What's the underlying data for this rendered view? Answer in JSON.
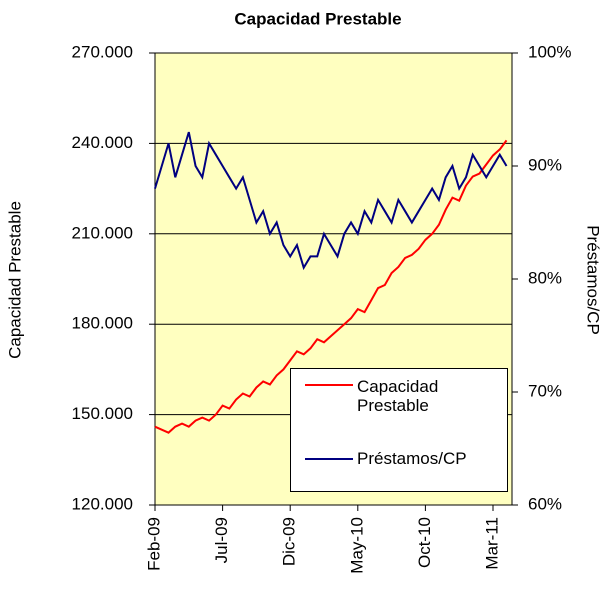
{
  "chart_data": {
    "type": "line",
    "title": "Capacidad Prestable",
    "y_label": "Capacidad Prestable",
    "y2_label": "Préstamos/CP",
    "categories": [
      "Feb-09",
      null,
      null,
      null,
      null,
      null,
      null,
      null,
      null,
      null,
      "Jul-09",
      null,
      null,
      null,
      null,
      null,
      null,
      null,
      null,
      null,
      "Dic-09",
      null,
      null,
      null,
      null,
      null,
      null,
      null,
      null,
      null,
      "May-10",
      null,
      null,
      null,
      null,
      null,
      null,
      null,
      null,
      null,
      "Oct-10",
      null,
      null,
      null,
      null,
      null,
      null,
      null,
      null,
      null,
      "Mar-11",
      null,
      null
    ],
    "series": [
      {
        "name": "Capacidad Prestable",
        "color": "#ff0000",
        "values": [
          146000,
          145000,
          144000,
          146000,
          147000,
          146000,
          148000,
          149000,
          148000,
          150000,
          153000,
          152000,
          155000,
          157000,
          156000,
          159000,
          161000,
          160000,
          163000,
          165000,
          168000,
          171000,
          170000,
          172000,
          175000,
          174000,
          176000,
          178000,
          180000,
          182000,
          185000,
          184000,
          188000,
          192000,
          193000,
          197000,
          199000,
          202000,
          203000,
          205000,
          208000,
          210000,
          213000,
          218000,
          222000,
          221000,
          226000,
          229000,
          230000,
          233000,
          236000,
          238000,
          241000
        ]
      },
      {
        "name": "Préstamos/CP",
        "color": "#000080",
        "axis": "y2",
        "values": [
          88,
          90,
          92,
          89,
          91,
          93,
          90,
          89,
          92,
          91,
          90,
          89,
          88,
          89,
          87,
          85,
          86,
          84,
          85,
          83,
          82,
          83,
          81,
          82,
          82,
          84,
          83,
          82,
          84,
          85,
          84,
          86,
          85,
          87,
          86,
          85,
          87,
          86,
          85,
          86,
          87,
          88,
          87,
          89,
          90,
          88,
          89,
          91,
          90,
          89,
          90,
          91,
          90
        ]
      }
    ],
    "ylim": [
      120000,
      270000
    ],
    "yticks": [
      {
        "value": 120000,
        "label": "120.000"
      },
      {
        "value": 150000,
        "label": "150.000"
      },
      {
        "value": 180000,
        "label": "180.000"
      },
      {
        "value": 210000,
        "label": "210.000"
      },
      {
        "value": 240000,
        "label": "240.000"
      },
      {
        "value": 270000,
        "label": "270.000"
      }
    ],
    "y2lim": [
      60,
      100
    ],
    "y2ticks": [
      {
        "value": 60,
        "label": "60%"
      },
      {
        "value": 70,
        "label": "70%"
      },
      {
        "value": 80,
        "label": "80%"
      },
      {
        "value": 90,
        "label": "90%"
      },
      {
        "value": 100,
        "label": "100%"
      }
    ],
    "grid": true,
    "legend": "lower-right",
    "plot_background": "#ffffc0"
  }
}
